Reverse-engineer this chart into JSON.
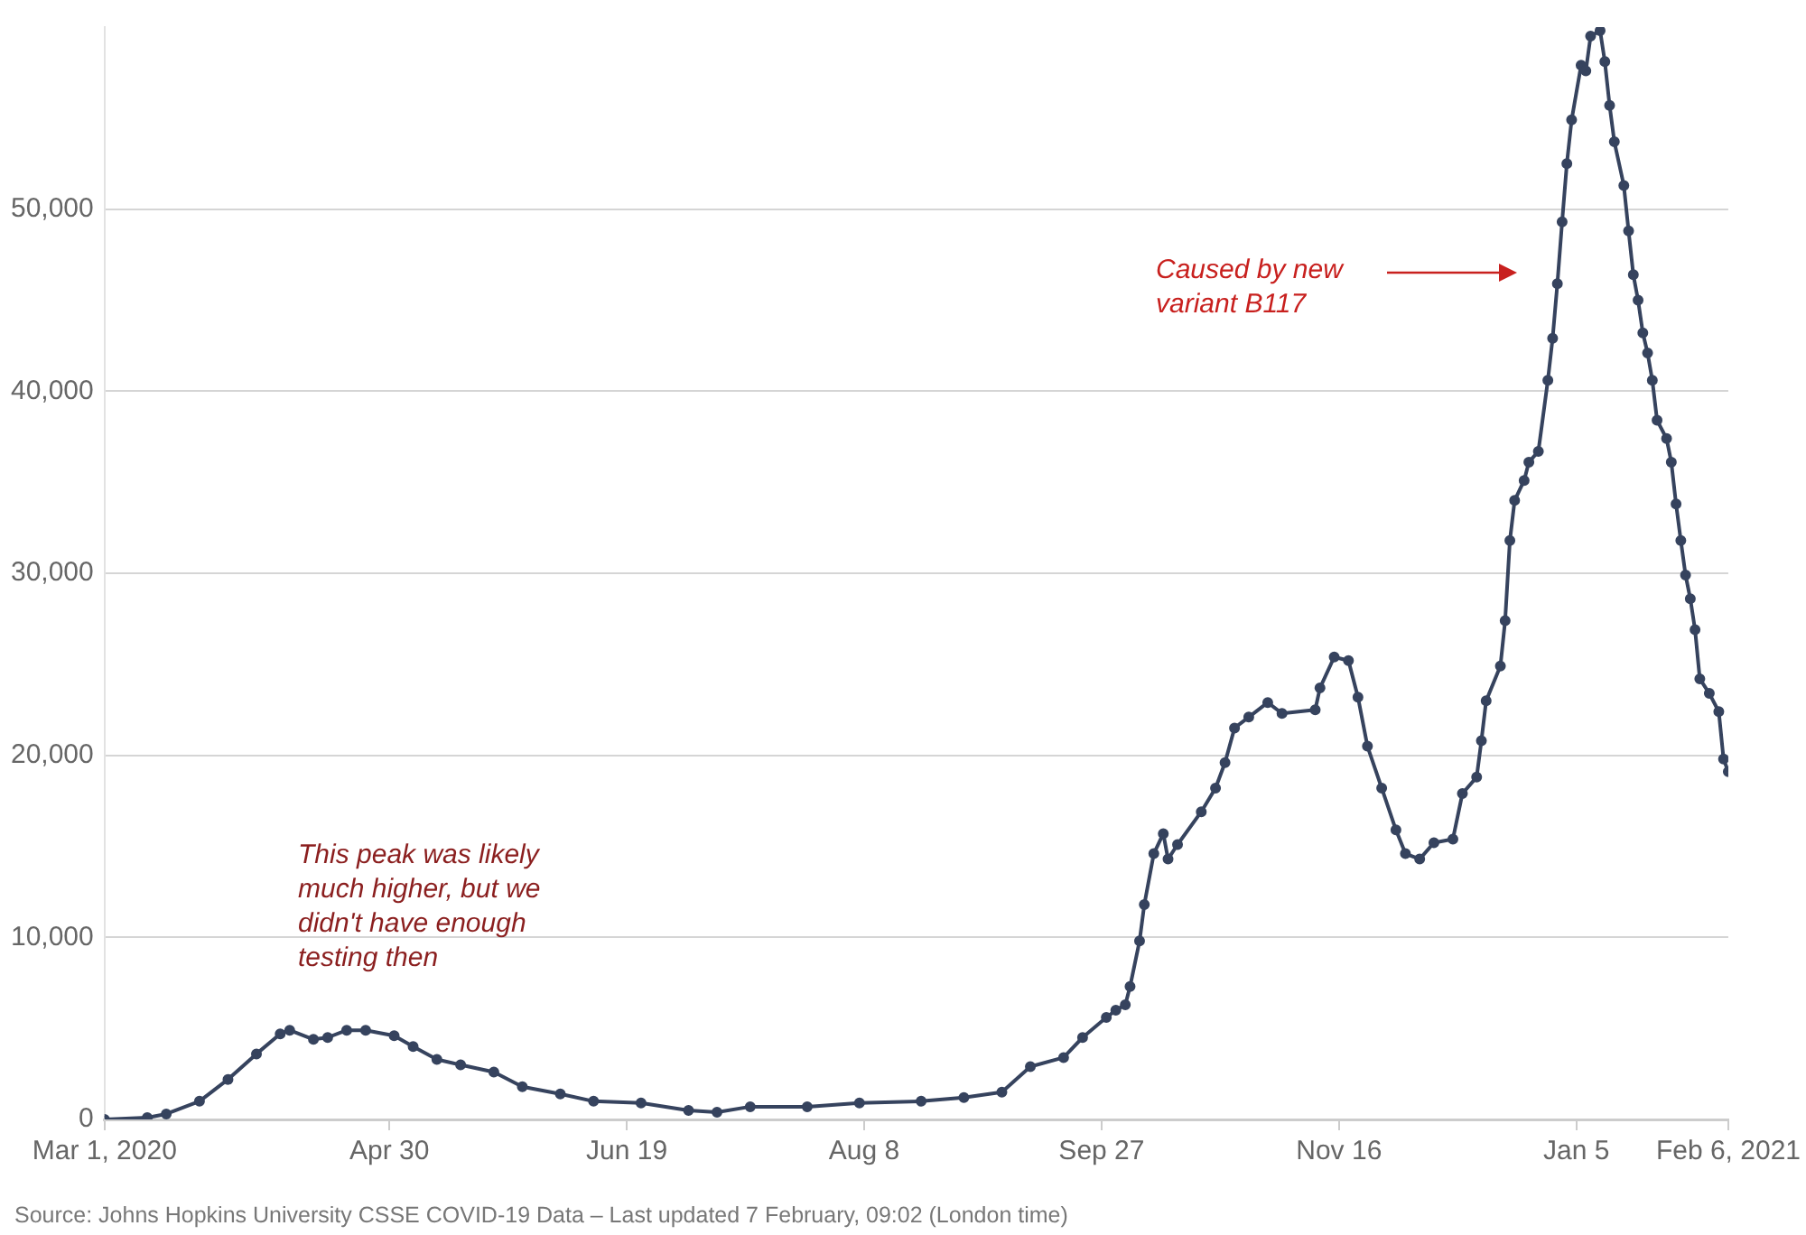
{
  "chart_data": {
    "type": "line",
    "x": [
      "2020-03-01",
      "2020-03-10",
      "2020-03-14",
      "2020-03-21",
      "2020-03-27",
      "2020-04-02",
      "2020-04-07",
      "2020-04-09",
      "2020-04-14",
      "2020-04-17",
      "2020-04-21",
      "2020-04-25",
      "2020-05-01",
      "2020-05-05",
      "2020-05-10",
      "2020-05-15",
      "2020-05-22",
      "2020-05-28",
      "2020-06-05",
      "2020-06-12",
      "2020-06-22",
      "2020-07-02",
      "2020-07-08",
      "2020-07-15",
      "2020-07-27",
      "2020-08-07",
      "2020-08-20",
      "2020-08-29",
      "2020-09-06",
      "2020-09-12",
      "2020-09-19",
      "2020-09-23",
      "2020-09-28",
      "2020-09-30",
      "2020-10-02",
      "2020-10-03",
      "2020-10-05",
      "2020-10-06",
      "2020-10-08",
      "2020-10-10",
      "2020-10-11",
      "2020-10-13",
      "2020-10-18",
      "2020-10-21",
      "2020-10-23",
      "2020-10-25",
      "2020-10-28",
      "2020-11-01",
      "2020-11-04",
      "2020-11-11",
      "2020-11-12",
      "2020-11-15",
      "2020-11-18",
      "2020-11-20",
      "2020-11-22",
      "2020-11-25",
      "2020-11-28",
      "2020-11-30",
      "2020-12-03",
      "2020-12-06",
      "2020-12-10",
      "2020-12-12",
      "2020-12-15",
      "2020-12-16",
      "2020-12-17",
      "2020-12-20",
      "2020-12-21",
      "2020-12-22",
      "2020-12-23",
      "2020-12-25",
      "2020-12-26",
      "2020-12-28",
      "2020-12-30",
      "2020-12-31",
      "2021-01-01",
      "2021-01-02",
      "2021-01-03",
      "2021-01-04",
      "2021-01-06",
      "2021-01-07",
      "2021-01-08",
      "2021-01-10",
      "2021-01-11",
      "2021-01-12",
      "2021-01-13",
      "2021-01-15",
      "2021-01-16",
      "2021-01-17",
      "2021-01-18",
      "2021-01-19",
      "2021-01-20",
      "2021-01-21",
      "2021-01-22",
      "2021-01-24",
      "2021-01-25",
      "2021-01-26",
      "2021-01-27",
      "2021-01-28",
      "2021-01-29",
      "2021-01-30",
      "2021-01-31",
      "2021-02-02",
      "2021-02-04",
      "2021-02-05",
      "2021-02-06"
    ],
    "series": [
      {
        "color": "#36435e",
        "values": [
          0,
          100,
          300,
          1000,
          2200,
          3600,
          4700,
          4900,
          4400,
          4500,
          4900,
          4900,
          4600,
          4000,
          3300,
          3000,
          2600,
          1800,
          1400,
          1000,
          900,
          500,
          400,
          700,
          700,
          900,
          1000,
          1200,
          1500,
          2900,
          3400,
          4500,
          5600,
          6000,
          6300,
          7300,
          9800,
          11800,
          14600,
          15700,
          14300,
          15100,
          16900,
          18200,
          19600,
          21500,
          22100,
          22900,
          22300,
          22500,
          23700,
          25400,
          25200,
          23200,
          20500,
          18200,
          15900,
          14600,
          14300,
          15200,
          15400,
          17900,
          18800,
          20800,
          23000,
          24900,
          27400,
          31800,
          34000,
          35100,
          36100,
          36700,
          40600,
          42900,
          45900,
          49300,
          52500,
          54900,
          57900,
          57600,
          59500,
          59800,
          58100,
          55700,
          53700,
          51300,
          48800,
          46400,
          45000,
          43200,
          42100,
          40600,
          38400,
          37400,
          36100,
          33800,
          31800,
          29900,
          28600,
          26900,
          24200,
          23400,
          22400,
          19800,
          19100
        ]
      }
    ],
    "xlim": [
      "2020-03-01",
      "2021-02-06"
    ],
    "xticks": [
      {
        "value": "2020-03-01",
        "label": "Mar 1, 2020"
      },
      {
        "value": "2020-04-30",
        "label": "Apr 30"
      },
      {
        "value": "2020-06-19",
        "label": "Jun 19"
      },
      {
        "value": "2020-08-08",
        "label": "Aug 8"
      },
      {
        "value": "2020-09-27",
        "label": "Sep 27"
      },
      {
        "value": "2020-11-16",
        "label": "Nov 16"
      },
      {
        "value": "2021-01-05",
        "label": "Jan 5"
      },
      {
        "value": "2021-02-06",
        "label": "Feb 6, 2021"
      }
    ],
    "yticks": [
      {
        "value": 0,
        "label": "0"
      },
      {
        "value": 10000,
        "label": "10,000"
      },
      {
        "value": 20000,
        "label": "20,000"
      },
      {
        "value": 30000,
        "label": "30,000"
      },
      {
        "value": 40000,
        "label": "40,000"
      },
      {
        "value": 50000,
        "label": "50,000"
      }
    ],
    "ylim": [
      0,
      60000
    ],
    "grid": "y",
    "marker": "circle",
    "line_style": "solid",
    "annotations": [
      "This peak was likely much higher, but we didn't have enough testing then",
      "Caused by new variant B117",
      "Source: Johns Hopkins University CSSE COVID-19 Data – Last updated 7 February, 09:02 (London time)"
    ]
  }
}
